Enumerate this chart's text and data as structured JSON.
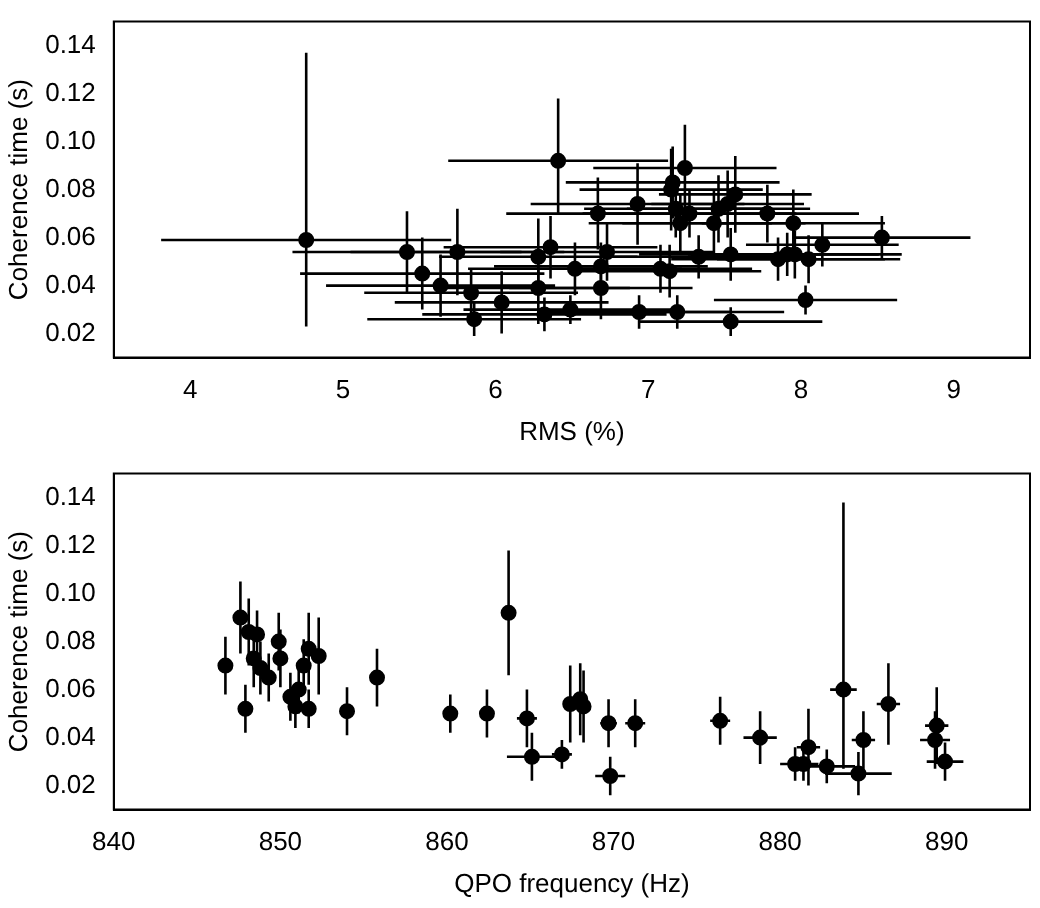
{
  "chart_data": [
    {
      "type": "scatter",
      "xlabel": "RMS (%)",
      "ylabel": "Coherence time (s)",
      "xlim": [
        3.5,
        9.5
      ],
      "xticks": [
        4,
        5,
        6,
        7,
        8,
        9
      ],
      "ylim": [
        0.01,
        0.15
      ],
      "yticks": [
        0.02,
        0.04,
        0.06,
        0.08,
        {
          "value": 0.1,
          "label": "0.10"
        },
        0.12,
        0.14
      ],
      "marker": "circle",
      "series": [
        {
          "color": "#000000",
          "x": [
            4.76,
            5.42,
            5.52,
            5.64,
            5.75,
            5.84,
            5.86,
            6.04,
            6.28,
            6.28,
            6.32,
            6.36,
            6.41,
            6.49,
            6.52,
            6.67,
            6.69,
            6.69,
            6.73,
            6.93,
            6.94,
            7.08,
            7.14,
            7.15,
            7.16,
            7.19,
            7.18,
            7.21,
            7.24,
            7.27,
            7.33,
            7.43,
            7.46,
            7.52,
            7.54,
            7.54,
            7.57,
            7.78,
            7.85,
            7.91,
            7.95,
            7.96,
            8.03,
            8.05,
            8.14,
            8.53
          ],
          "values": [
            0.059,
            0.054,
            0.045,
            0.04,
            0.054,
            0.037,
            0.026,
            0.033,
            0.052,
            0.039,
            0.028,
            0.056,
            0.092,
            0.03,
            0.047,
            0.07,
            0.039,
            0.048,
            0.054,
            0.074,
            0.029,
            0.047,
            0.046,
            0.08,
            0.083,
            0.029,
            0.072,
            0.066,
            0.089,
            0.07,
            0.052,
            0.066,
            0.072,
            0.074,
            0.053,
            0.025,
            0.078,
            0.07,
            0.051,
            0.053,
            0.066,
            0.053,
            0.034,
            0.051,
            0.057,
            0.06
          ],
          "errors": [
            [
              0.023,
              0.137
            ],
            0.017,
            0.015,
            0.013,
            0.018,
            0.01,
            0.007,
            0.013,
            0.016,
            0.015,
            0.007,
            0.013,
            [
              0.07,
              0.118
            ],
            0.006,
            0.011,
            0.015,
            0.013,
            0.01,
            0.012,
            0.017,
            0.007,
            0.01,
            0.011,
            0.017,
            0.015,
            0.007,
            0.012,
            0.012,
            0.018,
            0.01,
            0.009,
            0.014,
            0.014,
            0.014,
            0.011,
            0.006,
            0.016,
            0.012,
            0.009,
            0.009,
            0.014,
            0.01,
            0.006,
            0.01,
            0.009,
            0.009
          ],
          "xerrors": [
            0.95,
            0.75,
            0.8,
            0.75,
            0.7,
            0.7,
            0.7,
            0.7,
            0.65,
            0.6,
            0.8,
            0.7,
            0.72,
            0.7,
            0.7,
            0.6,
            0.6,
            0.7,
            0.7,
            0.7,
            0.6,
            0.6,
            0.6,
            0.6,
            0.7,
            0.7,
            0.6,
            0.6,
            0.6,
            0.7,
            0.6,
            0.6,
            0.6,
            0.5,
            0.6,
            0.6,
            0.5,
            0.6,
            0.7,
            0.6,
            0.6,
            0.7,
            0.6,
            0.6,
            0.5,
            0.58
          ]
        }
      ]
    },
    {
      "type": "scatter",
      "xlabel": "QPO frequency (Hz)",
      "ylabel": "Coherence time (s)",
      "xlim": [
        840,
        895
      ],
      "xticks": [
        840,
        850,
        860,
        870,
        880,
        890
      ],
      "ylim": [
        0.01,
        0.15
      ],
      "yticks": [
        0.02,
        0.04,
        0.06,
        0.08,
        {
          "value": 0.1,
          "label": "0.10"
        },
        0.12,
        0.14
      ],
      "marker": "circle",
      "series": [
        {
          "color": "#000000",
          "x": [
            846.7,
            847.6,
            847.9,
            848.1,
            848.4,
            848.6,
            848.8,
            849.3,
            849.9,
            850.0,
            850.6,
            850.9,
            851.1,
            851.4,
            851.7,
            851.7,
            852.3,
            854.0,
            855.8,
            860.2,
            862.4,
            863.7,
            864.8,
            865.1,
            866.9,
            867.4,
            868.0,
            868.2,
            869.7,
            869.8,
            871.3,
            876.4,
            878.8,
            880.9,
            881.4,
            881.7,
            882.8,
            883.8,
            884.7,
            885.0,
            886.5,
            889.3,
            889.4,
            889.9
          ],
          "values": [
            0.07,
            0.09,
            0.052,
            0.084,
            0.073,
            0.083,
            0.069,
            0.065,
            0.08,
            0.073,
            0.057,
            0.053,
            0.06,
            0.07,
            0.077,
            0.052,
            0.074,
            0.051,
            0.065,
            0.05,
            0.05,
            0.092,
            0.048,
            0.032,
            0.033,
            0.054,
            0.056,
            0.053,
            0.046,
            0.024,
            0.046,
            0.047,
            0.04,
            0.029,
            0.029,
            0.036,
            0.028,
            0.06,
            0.025,
            0.039,
            0.054,
            0.039,
            0.045,
            0.03
          ],
          "errors": [
            0.012,
            0.015,
            0.01,
            0.014,
            0.012,
            0.01,
            0.011,
            0.01,
            0.012,
            0.012,
            0.01,
            0.009,
            0.01,
            0.011,
            0.015,
            0.008,
            0.016,
            0.01,
            0.012,
            0.008,
            0.01,
            0.026,
            0.012,
            0.01,
            0.006,
            0.016,
            0.015,
            0.015,
            0.01,
            0.008,
            0.01,
            0.01,
            0.011,
            0.007,
            0.007,
            0.016,
            0.007,
            [
              0.027,
              0.138
            ],
            0.009,
            0.012,
            0.017,
            0.012,
            0.016,
            0.008
          ],
          "xerrors": [
            0.3,
            0.3,
            0.3,
            0.3,
            0.3,
            0.3,
            0.3,
            0.3,
            0.3,
            0.3,
            0.3,
            0.3,
            0.3,
            0.3,
            0.3,
            0.3,
            0.3,
            0.3,
            0.3,
            0.3,
            0.3,
            0.4,
            0.6,
            1.5,
            0.6,
            0.3,
            0.3,
            0.3,
            0.5,
            0.9,
            0.6,
            0.6,
            1.0,
            0.9,
            0.9,
            0.7,
            1.7,
            0.8,
            2.0,
            0.7,
            0.7,
            0.9,
            0.7,
            1.1
          ]
        }
      ]
    }
  ]
}
